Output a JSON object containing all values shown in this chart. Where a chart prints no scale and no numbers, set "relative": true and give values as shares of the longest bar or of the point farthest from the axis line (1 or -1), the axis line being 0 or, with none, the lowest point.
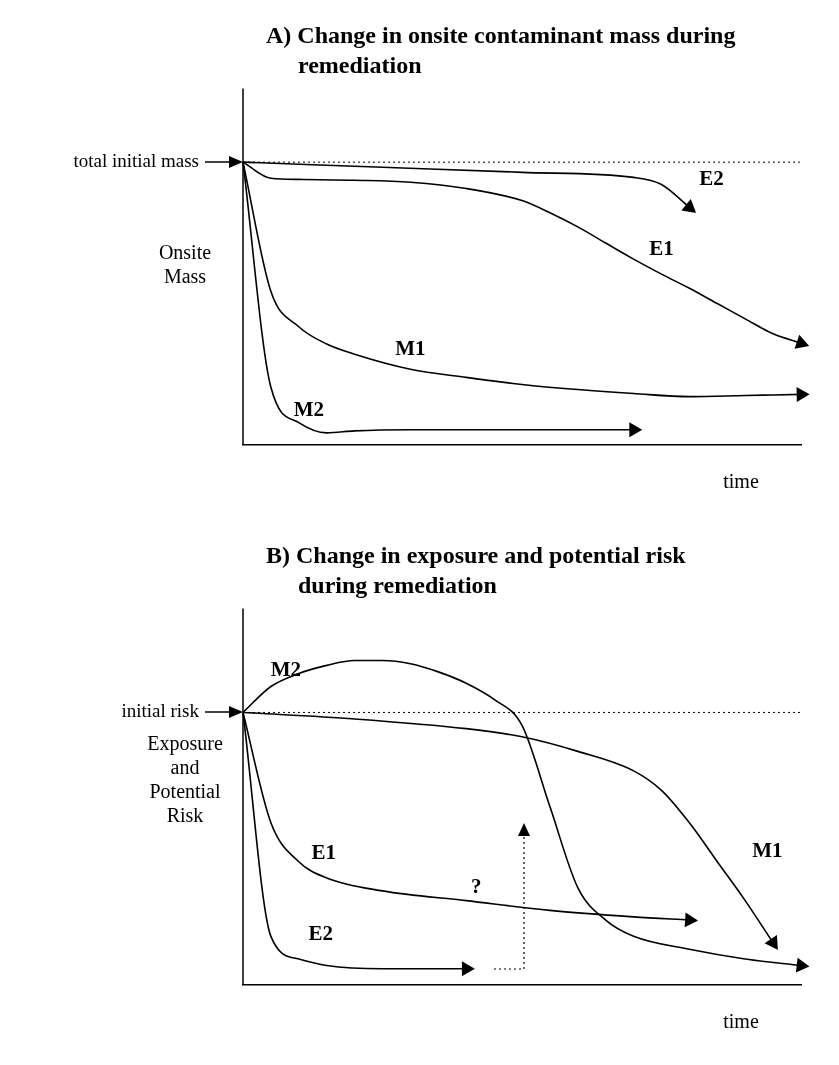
{
  "chart_data": [
    {
      "type": "line",
      "title": "A)  Change in onsite contaminant mass during remediation",
      "xlabel": "time",
      "ylabel": "Onsite Mass",
      "relative": true,
      "grid": false,
      "legend": false,
      "marker": "none",
      "categories": [
        null,
        null,
        null,
        null,
        null,
        null,
        null,
        null,
        null,
        null,
        null,
        null,
        null,
        null,
        null,
        null,
        null,
        null,
        null,
        null,
        null
      ],
      "ref_lines": [
        {
          "axis": "y",
          "value": 1,
          "label": "total initial mass",
          "line_style": "dotted",
          "color": "#000000"
        }
      ],
      "series": [
        {
          "name": "E2",
          "color": "#000000",
          "values": [
            1,
            null,
            null,
            null,
            null,
            0.982,
            null,
            null,
            null,
            null,
            0.964,
            null,
            null,
            null,
            0.946,
            0.921,
            0.84,
            null,
            null,
            null,
            null
          ]
        },
        {
          "name": "E1",
          "color": "#000000",
          "values": [
            1,
            0.943,
            0.939,
            null,
            0.936,
            null,
            0.929,
            null,
            0.907,
            null,
            0.864,
            0.821,
            0.771,
            0.714,
            0.657,
            0.604,
            0.554,
            0.5,
            0.446,
            0.393,
            0.36
          ]
        },
        {
          "name": "M1",
          "color": "#000000",
          "values": [
            1,
            0.543,
            0.418,
            0.357,
            0.321,
            null,
            0.268,
            null,
            0.239,
            null,
            0.214,
            null,
            0.196,
            null,
            0.182,
            null,
            0.171,
            null,
            0.175,
            null,
            0.179
          ]
        },
        {
          "name": "M2",
          "color": "#000000",
          "values": [
            1,
            0.204,
            0.079,
            0.043,
            0.05,
            null,
            0.054,
            null,
            0.054,
            null,
            0.054,
            null,
            0.054,
            null,
            0.054,
            null,
            null,
            null,
            null,
            null,
            null
          ]
        }
      ]
    },
    {
      "type": "line",
      "title": "B)  Change in exposure and potential risk during remediation",
      "xlabel": "time",
      "ylabel": "Exposure and Potential Risk",
      "relative": true,
      "grid": false,
      "legend": false,
      "marker": "none",
      "categories": [
        null,
        null,
        null,
        null,
        null,
        null,
        null,
        null,
        null,
        null,
        null,
        null,
        null,
        null,
        null,
        null,
        null,
        null,
        null,
        null,
        null
      ],
      "ref_lines": [
        {
          "axis": "y",
          "value": 0.84,
          "label": "initial risk",
          "line_style": "dotted",
          "color": "#000000"
        }
      ],
      "annotations": [
        "?"
      ],
      "series": [
        {
          "name": "M2",
          "color": "#000000",
          "values": [
            0.84,
            0.92,
            0.96,
            0.985,
            1,
            1,
            0.99,
            0.965,
            0.93,
            0.88,
            0.8,
            0.55,
            0.3,
            0.2,
            0.15,
            null,
            0.11,
            null,
            0.08,
            null,
            0.06
          ]
        },
        {
          "name": "M1",
          "color": "#000000",
          "values": [
            0.84,
            null,
            null,
            null,
            0.82,
            null,
            null,
            null,
            0.79,
            null,
            0.765,
            null,
            0.72,
            null,
            0.66,
            0.6,
            0.5,
            0.38,
            0.26,
            0.13,
            null
          ]
        },
        {
          "name": "E1",
          "color": "#000000",
          "values": [
            0.84,
            0.5,
            0.38,
            0.33,
            null,
            0.29,
            null,
            null,
            0.26,
            null,
            null,
            0.23,
            null,
            null,
            0.21,
            null,
            0.2,
            null,
            null,
            null,
            null
          ]
        },
        {
          "name": "E2",
          "color": "#000000",
          "values": [
            0.84,
            0.15,
            0.08,
            0.06,
            null,
            0.05,
            null,
            null,
            0.05,
            null,
            null,
            null,
            null,
            null,
            null,
            null,
            null,
            null,
            null,
            null,
            null
          ]
        }
      ]
    }
  ]
}
